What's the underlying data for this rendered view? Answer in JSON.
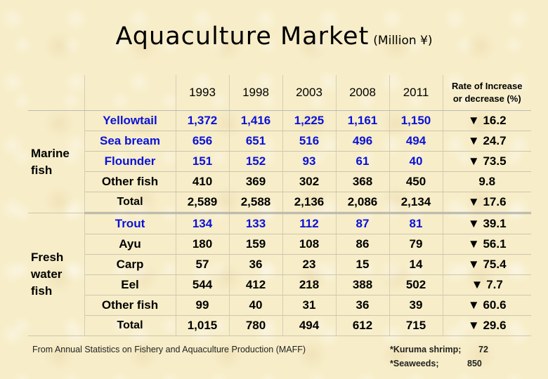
{
  "title": "Aquaculture Market",
  "unit": "(Million ¥)",
  "header": {
    "years": [
      "1993",
      "1998",
      "2003",
      "2008",
      "2011"
    ],
    "rate_line1": "Rate of Increase",
    "rate_line2": "or decrease (%)"
  },
  "marine": {
    "group_label": "Marine fish",
    "rows": [
      {
        "name": "Yellowtail",
        "values": [
          "1,372",
          "1,416",
          "1,225",
          "1,161",
          "1,150"
        ],
        "rate": "▼ 16.2"
      },
      {
        "name": "Sea bream",
        "values": [
          "656",
          "651",
          "516",
          "496",
          "494"
        ],
        "rate": "▼ 24.7"
      },
      {
        "name": "Flounder",
        "values": [
          "151",
          "152",
          "93",
          "61",
          "40"
        ],
        "rate": "▼ 73.5"
      },
      {
        "name": "Other fish",
        "values": [
          "410",
          "369",
          "302",
          "368",
          "450"
        ],
        "rate": "9.8"
      }
    ],
    "total": {
      "name": "Total",
      "values": [
        "2,589",
        "2,588",
        "2,136",
        "2,086",
        "2,134"
      ],
      "rate": "▼ 17.6"
    }
  },
  "fresh": {
    "group_label": "Fresh water fish",
    "rows": [
      {
        "name": "Trout",
        "values": [
          "134",
          "133",
          "112",
          "87",
          "81"
        ],
        "rate": "▼ 39.1"
      },
      {
        "name": "Ayu",
        "values": [
          "180",
          "159",
          "108",
          "86",
          "79"
        ],
        "rate": "▼ 56.1"
      },
      {
        "name": "Carp",
        "values": [
          "57",
          "36",
          "23",
          "15",
          "14"
        ],
        "rate": "▼ 75.4"
      },
      {
        "name": "Eel",
        "values": [
          "544",
          "412",
          "218",
          "388",
          "502"
        ],
        "rate": "▼ 7.7"
      },
      {
        "name": "Other fish",
        "values": [
          "99",
          "40",
          "31",
          "36",
          "39"
        ],
        "rate": "▼ 60.6"
      }
    ],
    "total": {
      "name": "Total",
      "values": [
        "1,015",
        "780",
        "494",
        "612",
        "715"
      ],
      "rate": "▼ 29.6"
    }
  },
  "footer": {
    "source": "From Annual Statistics on Fishery and Aquaculture Production (MAFF)",
    "notes": [
      {
        "label": "*Kuruma shrimp;",
        "value": "72"
      },
      {
        "label": "*Seaweeds;",
        "value": "850"
      }
    ]
  },
  "colors": {
    "blue_text": "#0a12d8",
    "background": "#f7edc8"
  }
}
